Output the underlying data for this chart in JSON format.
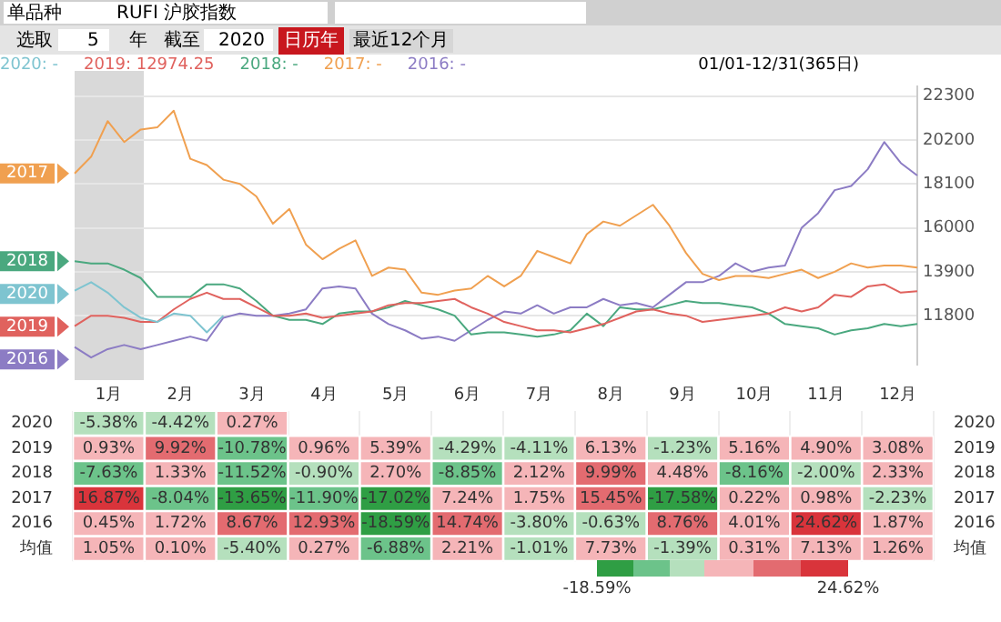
{
  "chart_data": [
    {
      "type": "line",
      "title": "RUFI 沪胶指数",
      "annotations": [
        "单品种",
        "选取",
        "5",
        "年",
        "截至",
        "2020",
        "日历年",
        "最近12个月",
        "2020: -",
        "2019: 12974.25",
        "2018: -",
        "2017: -",
        "2016: -",
        "01/01-12/31(365日)"
      ],
      "categories": [
        null,
        null,
        null,
        null,
        null,
        null,
        null,
        null,
        null,
        null,
        null,
        null,
        null,
        null,
        null,
        null,
        null,
        null,
        null,
        null,
        null,
        null,
        null,
        null,
        null,
        null,
        null,
        null,
        null,
        null,
        null,
        null,
        null,
        null,
        null,
        null,
        null,
        null,
        null,
        null,
        null,
        null,
        null,
        null,
        null,
        null,
        null,
        null,
        null,
        null,
        null,
        null
      ],
      "series": [
        {
          "name": "2020",
          "color": "#7ec4d0",
          "values": [
            13000,
            13400,
            12900,
            12200,
            11700,
            11500,
            11900,
            11800,
            11000,
            11800,
            null,
            null,
            null,
            null,
            null,
            null,
            null,
            null,
            null,
            null,
            null,
            null,
            null,
            null,
            null,
            null,
            null,
            null,
            null,
            null,
            null,
            null,
            null,
            null,
            null,
            null,
            null,
            null,
            null,
            null,
            null,
            null,
            null,
            null,
            null,
            null,
            null,
            null,
            null,
            null,
            null,
            null
          ]
        },
        {
          "name": "2019",
          "color": "#e0625e",
          "values": [
            11300,
            11800,
            11800,
            11700,
            11500,
            11500,
            12100,
            12600,
            12900,
            12600,
            12600,
            12200,
            11800,
            11800,
            11900,
            11700,
            11800,
            11900,
            12000,
            12300,
            12400,
            12400,
            12500,
            12600,
            12200,
            11900,
            11500,
            11300,
            11100,
            11100,
            11000,
            11200,
            11400,
            11700,
            12000,
            12100,
            11900,
            11800,
            11500,
            11600,
            11700,
            11800,
            11900,
            12200,
            12000,
            12200,
            12800,
            12700,
            13200,
            13300,
            12900,
            12974.25
          ]
        },
        {
          "name": "2018",
          "color": "#4aa87f",
          "values": [
            14400,
            14300,
            14300,
            14000,
            13600,
            12700,
            12700,
            12700,
            13300,
            13300,
            13100,
            12500,
            11800,
            11600,
            11600,
            11400,
            11900,
            12000,
            12000,
            12200,
            12500,
            12300,
            12100,
            11800,
            10900,
            11000,
            11000,
            10900,
            10800,
            10900,
            11100,
            11900,
            11300,
            12200,
            12100,
            12100,
            12300,
            12500,
            12400,
            12400,
            12300,
            12200,
            11900,
            11400,
            11300,
            11200,
            10900,
            11100,
            11200,
            11400,
            11300,
            11400
          ]
        },
        {
          "name": "2017",
          "color": "#f0a050",
          "values": [
            18600,
            19400,
            21100,
            20100,
            20700,
            20800,
            21600,
            19300,
            19000,
            18300,
            18100,
            17500,
            16200,
            16900,
            15200,
            14500,
            15000,
            15400,
            13700,
            14100,
            14000,
            12900,
            12800,
            13000,
            13100,
            13700,
            13200,
            13700,
            14900,
            14600,
            14300,
            15700,
            16300,
            16100,
            16600,
            17100,
            16100,
            14800,
            13800,
            13500,
            13700,
            13700,
            13600,
            13800,
            14000,
            13600,
            13900,
            14300,
            14100,
            14200,
            14200,
            14100
          ]
        },
        {
          "name": "2016",
          "color": "#8c7cc4",
          "values": [
            10300,
            9800,
            10200,
            10400,
            10200,
            10400,
            10600,
            10800,
            10600,
            11700,
            11900,
            11800,
            11800,
            11900,
            12100,
            13100,
            13200,
            13100,
            11900,
            11400,
            11100,
            10700,
            10800,
            10600,
            11100,
            11600,
            12000,
            11900,
            12300,
            11900,
            12200,
            12200,
            12600,
            12300,
            12400,
            12200,
            12800,
            13400,
            13400,
            13700,
            14300,
            13900,
            14100,
            14200,
            16000,
            16700,
            17800,
            18000,
            18800,
            20100,
            19100,
            18500
          ]
        }
      ],
      "ylim": [
        9450,
        22770
      ],
      "yticks": [
        11800,
        13900,
        16000,
        18100,
        20200,
        22300
      ],
      "tick_labels": "y",
      "grid": "y",
      "legend": "left"
    },
    {
      "type": "heatmap",
      "categories": [
        "1月",
        "2月",
        "3月",
        "4月",
        "5月",
        "6月",
        "7月",
        "8月",
        "9月",
        "10月",
        "11月",
        "12月"
      ],
      "y_categories": [
        "2020",
        "2019",
        "2018",
        "2017",
        "2016",
        "均值"
      ],
      "y2_categories": [
        "2020",
        "2019",
        "2018",
        "2017",
        "2016",
        "均值"
      ],
      "cells": [
        [
          -5.38,
          -4.42,
          0.27,
          null,
          null,
          null,
          null,
          null,
          null,
          null,
          null,
          null
        ],
        [
          0.93,
          9.92,
          -10.78,
          0.96,
          5.39,
          -4.29,
          -4.11,
          6.13,
          -1.23,
          5.16,
          4.9,
          3.08
        ],
        [
          -7.63,
          1.33,
          -11.52,
          -0.9,
          2.7,
          -8.85,
          2.12,
          9.99,
          4.48,
          -8.16,
          -2.0,
          2.33
        ],
        [
          16.87,
          -8.04,
          -13.65,
          -11.9,
          -17.02,
          7.24,
          1.75,
          15.45,
          -17.58,
          0.22,
          0.98,
          -2.23
        ],
        [
          0.45,
          1.72,
          8.67,
          12.93,
          -18.59,
          14.74,
          -3.8,
          -0.63,
          8.76,
          4.01,
          24.62,
          1.87
        ],
        [
          1.05,
          0.1,
          -5.4,
          0.27,
          -6.88,
          2.21,
          -1.01,
          7.73,
          -1.39,
          0.31,
          7.13,
          1.26
        ]
      ],
      "cell_labels": [
        [
          "-5.38%",
          "-4.42%",
          "0.27%",
          null,
          null,
          null,
          null,
          null,
          null,
          null,
          null,
          null
        ],
        [
          "0.93%",
          "9.92%",
          "-10.78%",
          "0.96%",
          "5.39%",
          "-4.29%",
          "-4.11%",
          "6.13%",
          "-1.23%",
          "5.16%",
          "4.90%",
          "3.08%"
        ],
        [
          "-7.63%",
          "1.33%",
          "-11.52%",
          "-0.90%",
          "2.70%",
          "-8.85%",
          "2.12%",
          "9.99%",
          "4.48%",
          "-8.16%",
          "-2.00%",
          "2.33%"
        ],
        [
          "16.87%",
          "-8.04%",
          "-13.65%",
          "-11.90%",
          "-17.02%",
          "7.24%",
          "1.75%",
          "15.45%",
          "-17.58%",
          "0.22%",
          "0.98%",
          "-2.23%"
        ],
        [
          "0.45%",
          "1.72%",
          "8.67%",
          "12.93%",
          "-18.59%",
          "14.74%",
          "-3.80%",
          "-0.63%",
          "8.76%",
          "4.01%",
          "24.62%",
          "1.87%"
        ],
        [
          "1.05%",
          "0.10%",
          "-5.40%",
          "0.27%",
          "-6.88%",
          "2.21%",
          "-1.01%",
          "7.73%",
          "-1.39%",
          "0.31%",
          "7.13%",
          "1.26%"
        ]
      ],
      "clim": [
        -18.59,
        24.62
      ],
      "cticks": [
        {
          "value": -18.59,
          "label": "-18.59%"
        },
        {
          "value": 24.62,
          "label": "24.62%"
        }
      ]
    }
  ]
}
